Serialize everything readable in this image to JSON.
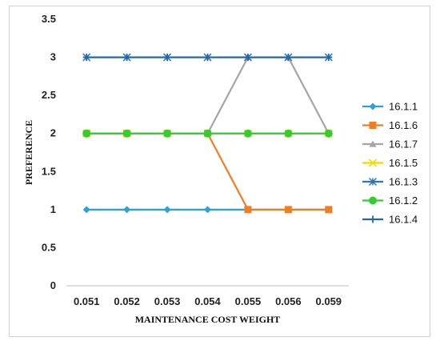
{
  "chart_data": {
    "type": "line",
    "categories": [
      "0.051",
      "0.052",
      "0.053",
      "0.054",
      "0.055",
      "0.056",
      "0.059"
    ],
    "xlabel": "MAINTENANCE COST WEIGHT",
    "ylabel": "PREFERENCE",
    "ylim": [
      0,
      3.5
    ],
    "yticks": [
      "0",
      "0.5",
      "1",
      "1.5",
      "2",
      "2.5",
      "3",
      "3.5"
    ],
    "grid": false,
    "legend_position": "right",
    "series": [
      {
        "name": "16.1.1",
        "color": "#2e9fd8",
        "marker": "diamond",
        "values": [
          1,
          1,
          1,
          1,
          1,
          1,
          1
        ]
      },
      {
        "name": "16.1.6",
        "color": "#f07d22",
        "marker": "square",
        "values": [
          2,
          2,
          2,
          2,
          1,
          1,
          1
        ]
      },
      {
        "name": "16.1.7",
        "color": "#a5a5a5",
        "marker": "triangle",
        "values": [
          2,
          2,
          2,
          2,
          3,
          3,
          2
        ]
      },
      {
        "name": "16.1.5",
        "color": "#f5d800",
        "marker": "x",
        "values": [
          2,
          2,
          2,
          2,
          2,
          2,
          2
        ]
      },
      {
        "name": "16.1.3",
        "color": "#2e75b6",
        "marker": "star",
        "values": [
          3,
          3,
          3,
          3,
          3,
          3,
          3
        ]
      },
      {
        "name": "16.1.2",
        "color": "#33cc33",
        "marker": "circle",
        "values": [
          2,
          2,
          2,
          2,
          2,
          2,
          2
        ]
      },
      {
        "name": "16.1.4",
        "color": "#2166a8",
        "marker": "plus",
        "values": [
          3,
          3,
          3,
          3,
          3,
          3,
          3
        ]
      }
    ]
  }
}
